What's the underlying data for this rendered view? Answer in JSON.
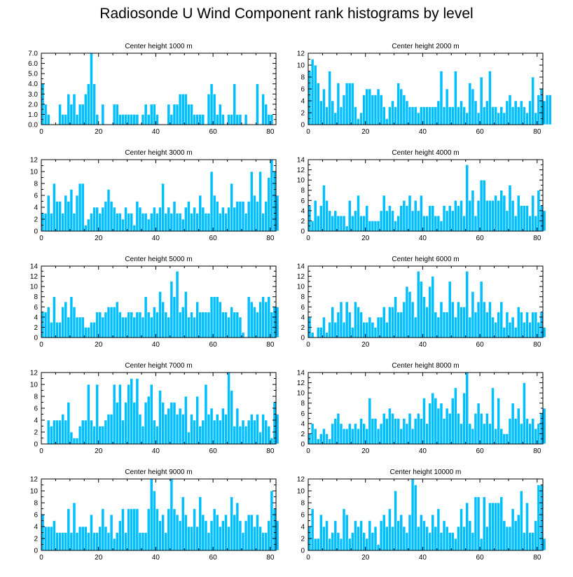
{
  "title": "Radiosonde U Wind Component rank histograms by level",
  "colors": {
    "bar": "#00bfff",
    "axis": "#000000",
    "background": "#ffffff"
  },
  "chart_data": [
    {
      "type": "bar",
      "title": "Center height 1000 m",
      "xlabel": "",
      "ylabel": "",
      "xlim": [
        0,
        82
      ],
      "ylim": [
        0,
        7
      ],
      "x_ticks": [
        0,
        20,
        40,
        60,
        80
      ],
      "y_ticks": [
        "0.0",
        "1.0",
        "2.0",
        "3.0",
        "4.0",
        "5.0",
        "6.0",
        "7.0"
      ],
      "values": [
        4,
        2,
        1,
        0,
        0,
        0,
        2,
        1,
        1,
        3,
        2,
        3,
        1,
        2,
        2,
        3,
        4,
        7,
        4,
        1,
        0,
        2,
        0,
        0,
        0,
        2,
        2,
        1,
        1,
        1,
        1,
        1,
        1,
        1,
        0,
        1,
        2,
        1,
        2,
        2,
        1,
        0,
        0,
        0,
        2,
        1,
        2,
        2,
        3,
        3,
        3,
        2,
        2,
        1,
        1,
        1,
        1,
        0,
        3,
        4,
        3,
        1,
        2,
        1,
        0,
        1,
        1,
        4,
        1,
        1,
        0,
        1,
        0,
        0,
        0,
        4,
        0,
        3,
        2,
        1,
        1,
        0
      ]
    },
    {
      "type": "bar",
      "title": "Center height 2000 m",
      "xlabel": "",
      "ylabel": "",
      "xlim": [
        0,
        82
      ],
      "ylim": [
        0,
        12
      ],
      "x_ticks": [
        0,
        20,
        40,
        60,
        80
      ],
      "y_ticks": [
        "0",
        "2",
        "4",
        "6",
        "8",
        "10",
        "12"
      ],
      "values": [
        9,
        11,
        10,
        7,
        4,
        6,
        3,
        9,
        4,
        2,
        7,
        3,
        5,
        7,
        7,
        7,
        3,
        1,
        2,
        5,
        6,
        6,
        5,
        5,
        6,
        5,
        3,
        1,
        3,
        4,
        3,
        7,
        6,
        5,
        4,
        3,
        3,
        3,
        2,
        3,
        3,
        3,
        3,
        3,
        3,
        4,
        9,
        3,
        6,
        3,
        3,
        9,
        3,
        4,
        3,
        2,
        7,
        6,
        4,
        2,
        8,
        3,
        4,
        9,
        3,
        3,
        2,
        3,
        2,
        4,
        5,
        3,
        4,
        3,
        4,
        3,
        2,
        4,
        8,
        2,
        5,
        6,
        4,
        5,
        5
      ]
    },
    {
      "type": "bar",
      "title": "Center height 3000 m",
      "xlabel": "",
      "ylabel": "",
      "xlim": [
        0,
        82
      ],
      "ylim": [
        0,
        12
      ],
      "x_ticks": [
        0,
        20,
        40,
        60,
        80
      ],
      "y_ticks": [
        "0",
        "2",
        "4",
        "6",
        "8",
        "10",
        "12"
      ],
      "values": [
        3,
        3,
        6,
        3,
        8,
        5,
        5,
        3,
        6,
        5,
        7,
        3,
        6,
        8,
        8,
        1,
        2,
        3,
        4,
        4,
        3,
        4,
        5,
        7,
        5,
        4,
        3,
        3,
        2,
        4,
        3,
        3,
        1,
        5,
        4,
        3,
        3,
        2,
        3,
        4,
        3,
        4,
        8,
        3,
        4,
        3,
        5,
        3,
        3,
        2,
        4,
        5,
        3,
        4,
        3,
        6,
        4,
        3,
        3,
        10,
        6,
        5,
        3,
        4,
        3,
        4,
        8,
        4,
        5,
        5,
        5,
        3,
        5,
        10,
        6,
        5,
        10,
        3,
        5,
        9,
        12,
        10,
        6
      ]
    },
    {
      "type": "bar",
      "title": "Center height 4000 m",
      "xlabel": "",
      "ylabel": "",
      "xlim": [
        0,
        82
      ],
      "ylim": [
        0,
        14
      ],
      "x_ticks": [
        0,
        20,
        40,
        60,
        80
      ],
      "y_ticks": [
        "0",
        "2",
        "4",
        "6",
        "8",
        "10",
        "12",
        "14"
      ],
      "values": [
        5,
        2,
        6,
        3,
        5,
        9,
        6,
        4,
        3,
        4,
        3,
        3,
        3,
        1,
        6,
        3,
        4,
        7,
        3,
        3,
        5,
        2,
        2,
        2,
        2,
        4,
        7,
        4,
        5,
        4,
        2,
        3,
        5,
        6,
        5,
        7,
        4,
        6,
        4,
        7,
        3,
        3,
        5,
        5,
        3,
        3,
        2,
        5,
        4,
        5,
        4,
        6,
        5,
        6,
        3,
        13,
        6,
        8,
        3,
        6,
        10,
        10,
        6,
        6,
        6,
        7,
        6,
        8,
        7,
        4,
        9,
        6,
        3,
        7,
        5,
        5,
        5,
        3,
        7,
        3,
        8,
        5,
        4
      ]
    },
    {
      "type": "bar",
      "title": "Center height 5000 m",
      "xlabel": "",
      "ylabel": "",
      "xlim": [
        0,
        82
      ],
      "ylim": [
        0,
        14
      ],
      "x_ticks": [
        0,
        20,
        40,
        60,
        80
      ],
      "y_ticks": [
        "0",
        "2",
        "4",
        "6",
        "8",
        "10",
        "12",
        "14"
      ],
      "values": [
        5,
        5,
        6,
        3,
        8,
        3,
        3,
        6,
        7,
        4,
        8,
        6,
        4,
        4,
        4,
        2,
        2,
        3,
        3,
        5,
        5,
        4,
        5,
        6,
        6,
        6,
        7,
        5,
        4,
        4,
        5,
        5,
        4,
        5,
        5,
        4,
        8,
        5,
        4,
        6,
        5,
        9,
        7,
        5,
        4,
        11,
        8,
        13,
        5,
        6,
        9,
        4,
        5,
        4,
        7,
        5,
        5,
        5,
        5,
        8,
        8,
        8,
        7,
        5,
        5,
        4,
        6,
        5,
        5,
        4,
        1,
        0,
        8,
        7,
        6,
        5,
        7,
        8,
        7,
        8,
        5,
        6,
        6
      ]
    },
    {
      "type": "bar",
      "title": "Center height 6000 m",
      "xlabel": "",
      "ylabel": "",
      "xlim": [
        0,
        82
      ],
      "ylim": [
        0,
        14
      ],
      "x_ticks": [
        0,
        20,
        40,
        60,
        80
      ],
      "y_ticks": [
        "0",
        "2",
        "4",
        "6",
        "8",
        "10",
        "12",
        "14"
      ],
      "values": [
        4,
        1,
        0,
        2,
        2,
        4,
        1,
        3,
        6,
        3,
        5,
        7,
        3,
        7,
        5,
        2,
        7,
        6,
        5,
        3,
        3,
        4,
        3,
        2,
        4,
        4,
        6,
        3,
        6,
        6,
        8,
        5,
        5,
        7,
        10,
        9,
        7,
        4,
        13,
        11,
        8,
        6,
        10,
        12,
        5,
        4,
        7,
        5,
        5,
        11,
        7,
        4,
        7,
        6,
        6,
        13,
        4,
        9,
        5,
        7,
        11,
        7,
        5,
        7,
        4,
        3,
        5,
        7,
        2,
        5,
        3,
        4,
        2,
        6,
        5,
        3,
        5,
        3,
        5,
        5,
        3,
        5,
        2
      ]
    },
    {
      "type": "bar",
      "title": "Center height 7000 m",
      "xlabel": "",
      "ylabel": "",
      "xlim": [
        0,
        82
      ],
      "ylim": [
        0,
        12
      ],
      "x_ticks": [
        0,
        20,
        40,
        60,
        80
      ],
      "y_ticks": [
        "0",
        "2",
        "4",
        "6",
        "8",
        "10",
        "12"
      ],
      "values": [
        0,
        0,
        4,
        3,
        4,
        4,
        4,
        5,
        4,
        7,
        2,
        1,
        1,
        3,
        4,
        4,
        10,
        4,
        3,
        10,
        3,
        3,
        4,
        5,
        5,
        10,
        7,
        10,
        4,
        7,
        10,
        11,
        7,
        11,
        5,
        3,
        7,
        8,
        10,
        4,
        3,
        9,
        7,
        5,
        6,
        7,
        7,
        5,
        6,
        5,
        8,
        2,
        5,
        4,
        8,
        3,
        4,
        10,
        5,
        6,
        4,
        5,
        4,
        6,
        5,
        12,
        9,
        3,
        6,
        3,
        4,
        3,
        4,
        5,
        4,
        5,
        2,
        5,
        4,
        3,
        1,
        7,
        5
      ]
    },
    {
      "type": "bar",
      "title": "Center height 8000 m",
      "xlabel": "",
      "ylabel": "",
      "xlim": [
        0,
        82
      ],
      "ylim": [
        0,
        14
      ],
      "x_ticks": [
        0,
        20,
        40,
        60,
        80
      ],
      "y_ticks": [
        "0",
        "2",
        "4",
        "6",
        "8",
        "10",
        "12",
        "14"
      ],
      "values": [
        2,
        4,
        3,
        1,
        2,
        3,
        2,
        1,
        4,
        5,
        6,
        4,
        3,
        3,
        4,
        3,
        4,
        3,
        5,
        4,
        3,
        9,
        5,
        5,
        3,
        4,
        6,
        5,
        7,
        6,
        5,
        5,
        3,
        5,
        4,
        6,
        3,
        5,
        6,
        5,
        9,
        4,
        8,
        10,
        9,
        7,
        8,
        5,
        7,
        6,
        9,
        11,
        6,
        4,
        10,
        14,
        4,
        3,
        6,
        8,
        6,
        4,
        6,
        4,
        11,
        3,
        9,
        3,
        2,
        2,
        5,
        8,
        5,
        7,
        4,
        12,
        5,
        4,
        5,
        3,
        4,
        6,
        7
      ]
    },
    {
      "type": "bar",
      "title": "Center height 9000 m",
      "xlabel": "",
      "ylabel": "",
      "xlim": [
        0,
        82
      ],
      "ylim": [
        0,
        12
      ],
      "x_ticks": [
        0,
        20,
        40,
        60,
        80
      ],
      "y_ticks": [
        "0",
        "2",
        "4",
        "6",
        "8",
        "10",
        "12"
      ],
      "values": [
        6,
        4,
        4,
        4,
        5,
        3,
        3,
        3,
        3,
        7,
        3,
        8,
        3,
        4,
        4,
        4,
        3,
        6,
        3,
        3,
        4,
        7,
        4,
        3,
        6,
        2,
        3,
        5,
        7,
        3,
        7,
        7,
        7,
        7,
        3,
        3,
        3,
        7,
        12,
        10,
        7,
        5,
        6,
        3,
        7,
        12,
        7,
        6,
        5,
        9,
        6,
        4,
        4,
        7,
        4,
        9,
        6,
        5,
        3,
        5,
        7,
        6,
        4,
        5,
        6,
        4,
        9,
        6,
        8,
        5,
        3,
        5,
        6,
        6,
        4,
        6,
        4,
        3,
        3,
        5,
        10,
        7,
        5
      ]
    },
    {
      "type": "bar",
      "title": "Center height 10000 m",
      "xlabel": "",
      "ylabel": "",
      "xlim": [
        0,
        82
      ],
      "ylim": [
        0,
        12
      ],
      "x_ticks": [
        0,
        20,
        40,
        60,
        80
      ],
      "y_ticks": [
        "0",
        "2",
        "4",
        "6",
        "8",
        "10",
        "12"
      ],
      "values": [
        4,
        7,
        2,
        2,
        6,
        4,
        5,
        2,
        3,
        5,
        3,
        2,
        7,
        6,
        2,
        3,
        5,
        4,
        5,
        3,
        2,
        5,
        3,
        4,
        1,
        5,
        6,
        4,
        7,
        4,
        10,
        5,
        6,
        4,
        3,
        6,
        12,
        11,
        4,
        6,
        5,
        4,
        3,
        6,
        4,
        7,
        3,
        5,
        4,
        3,
        3,
        2,
        4,
        7,
        4,
        8,
        5,
        3,
        9,
        9,
        2,
        9,
        4,
        8,
        8,
        8,
        8,
        9,
        5,
        4,
        4,
        7,
        5,
        6,
        10,
        3,
        8,
        3,
        3,
        5,
        11,
        11,
        2
      ]
    }
  ]
}
